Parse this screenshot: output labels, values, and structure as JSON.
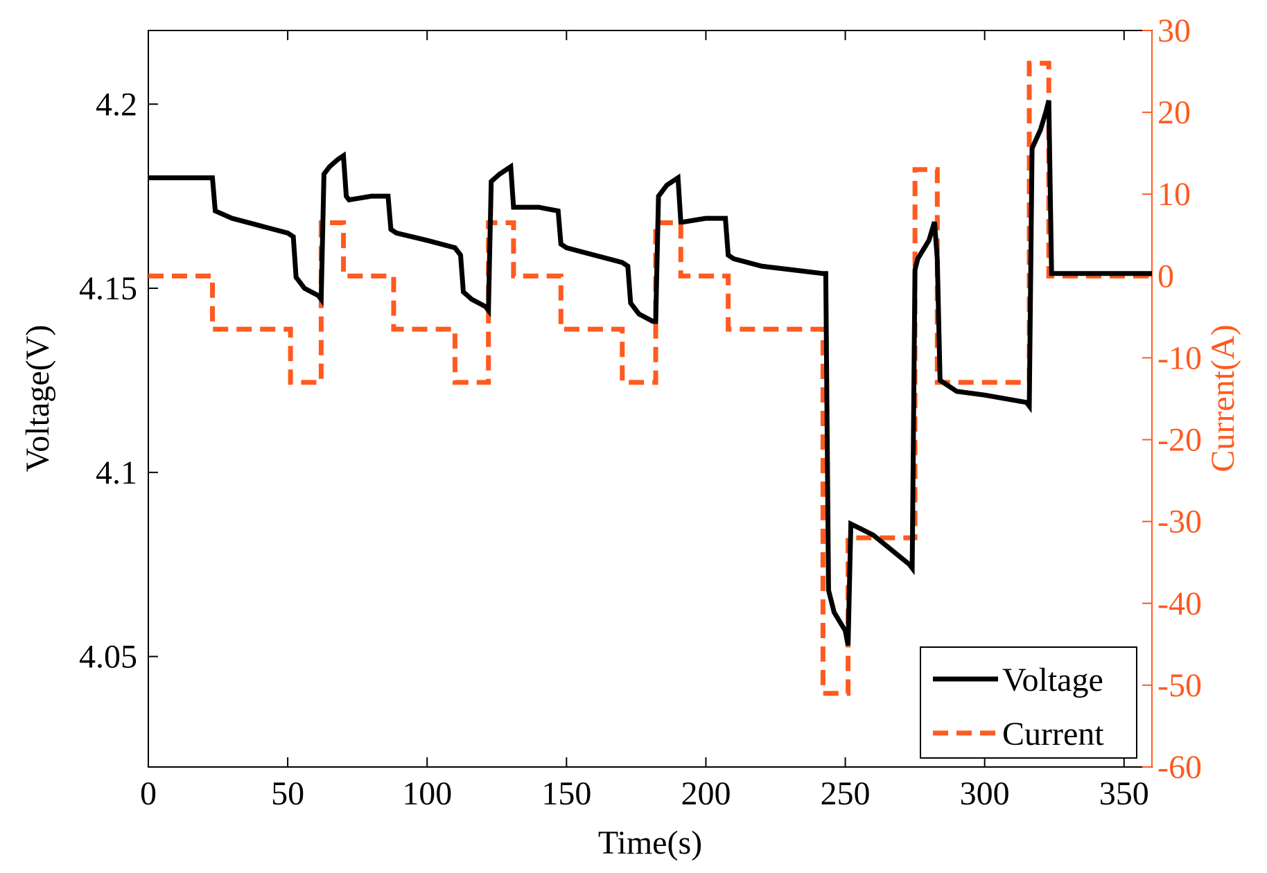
{
  "chart_data": {
    "type": "line",
    "title": "",
    "xlabel": "Time(s)",
    "ylabel": "Voltage(V)",
    "y2label": "Current(A)",
    "xlim": [
      0,
      360
    ],
    "ylim": [
      4.02,
      4.22
    ],
    "y2lim": [
      -60,
      30
    ],
    "xticks": [
      0,
      50,
      100,
      150,
      200,
      250,
      300,
      350
    ],
    "xtick_labels": [
      "0",
      "50",
      "100",
      "150",
      "200",
      "250",
      "300",
      "350"
    ],
    "yticks": [
      4.05,
      4.1,
      4.15,
      4.2
    ],
    "ytick_labels": [
      "4.05",
      "4.1",
      "4.15",
      "4.2"
    ],
    "y2ticks": [
      -60,
      -50,
      -40,
      -30,
      -20,
      -10,
      0,
      10,
      20,
      30
    ],
    "y2tick_labels": [
      "-60",
      "-50",
      "-40",
      "-30",
      "-20",
      "-10",
      "0",
      "10",
      "20",
      "30"
    ],
    "legend_position": "bottom-right",
    "colors": {
      "voltage": "#000000",
      "current": "#ff5a1f",
      "axis": "#000000"
    },
    "series": [
      {
        "name": "Voltage",
        "axis": "left",
        "style": "solid",
        "x": [
          0,
          23,
          24,
          30,
          40,
          50,
          52,
          53,
          56,
          61,
          62,
          63,
          65,
          68,
          70,
          71,
          72,
          80,
          86,
          87,
          89,
          100,
          110,
          112,
          113,
          116,
          121,
          122,
          123,
          126,
          130,
          131,
          132,
          140,
          147,
          148,
          150,
          160,
          170,
          172,
          173,
          176,
          181,
          182,
          183,
          186,
          190,
          191,
          192,
          200,
          207,
          208,
          210,
          220,
          242,
          243,
          244,
          246,
          250,
          251,
          252,
          260,
          273,
          274,
          275,
          276,
          280,
          282,
          283,
          284,
          290,
          300,
          315,
          316,
          317,
          320,
          322,
          323,
          324,
          330,
          360
        ],
        "values": [
          4.18,
          4.18,
          4.171,
          4.169,
          4.167,
          4.165,
          4.164,
          4.153,
          4.15,
          4.148,
          4.147,
          4.181,
          4.183,
          4.185,
          4.186,
          4.175,
          4.174,
          4.175,
          4.175,
          4.166,
          4.165,
          4.163,
          4.161,
          4.159,
          4.149,
          4.147,
          4.145,
          4.144,
          4.179,
          4.181,
          4.183,
          4.172,
          4.172,
          4.172,
          4.171,
          4.162,
          4.161,
          4.159,
          4.157,
          4.156,
          4.146,
          4.143,
          4.141,
          4.141,
          4.175,
          4.178,
          4.18,
          4.168,
          4.168,
          4.169,
          4.169,
          4.159,
          4.158,
          4.156,
          4.154,
          4.154,
          4.068,
          4.062,
          4.057,
          4.053,
          4.086,
          4.083,
          4.075,
          4.074,
          4.155,
          4.158,
          4.163,
          4.168,
          4.158,
          4.125,
          4.122,
          4.121,
          4.119,
          4.118,
          4.188,
          4.193,
          4.198,
          4.201,
          4.154,
          4.154,
          4.154
        ]
      },
      {
        "name": "Current",
        "axis": "right",
        "style": "dashed",
        "x": [
          0,
          23,
          23,
          51,
          51,
          62,
          62,
          70,
          70,
          88,
          88,
          110,
          110,
          122,
          122,
          131,
          131,
          148,
          148,
          170,
          170,
          182,
          182,
          191,
          191,
          208,
          208,
          242,
          242,
          251,
          251,
          275,
          275,
          283,
          283,
          316,
          316,
          323,
          323,
          360
        ],
        "values": [
          0,
          0,
          -6.5,
          -6.5,
          -13,
          -13,
          6.5,
          6.5,
          0,
          0,
          -6.5,
          -6.5,
          -13,
          -13,
          6.5,
          6.5,
          0,
          0,
          -6.5,
          -6.5,
          -13,
          -13,
          6.5,
          6.5,
          0,
          0,
          -6.5,
          -6.5,
          -51,
          -51,
          -32,
          -32,
          13,
          13,
          -13,
          -13,
          26,
          26,
          0,
          0
        ]
      }
    ]
  }
}
